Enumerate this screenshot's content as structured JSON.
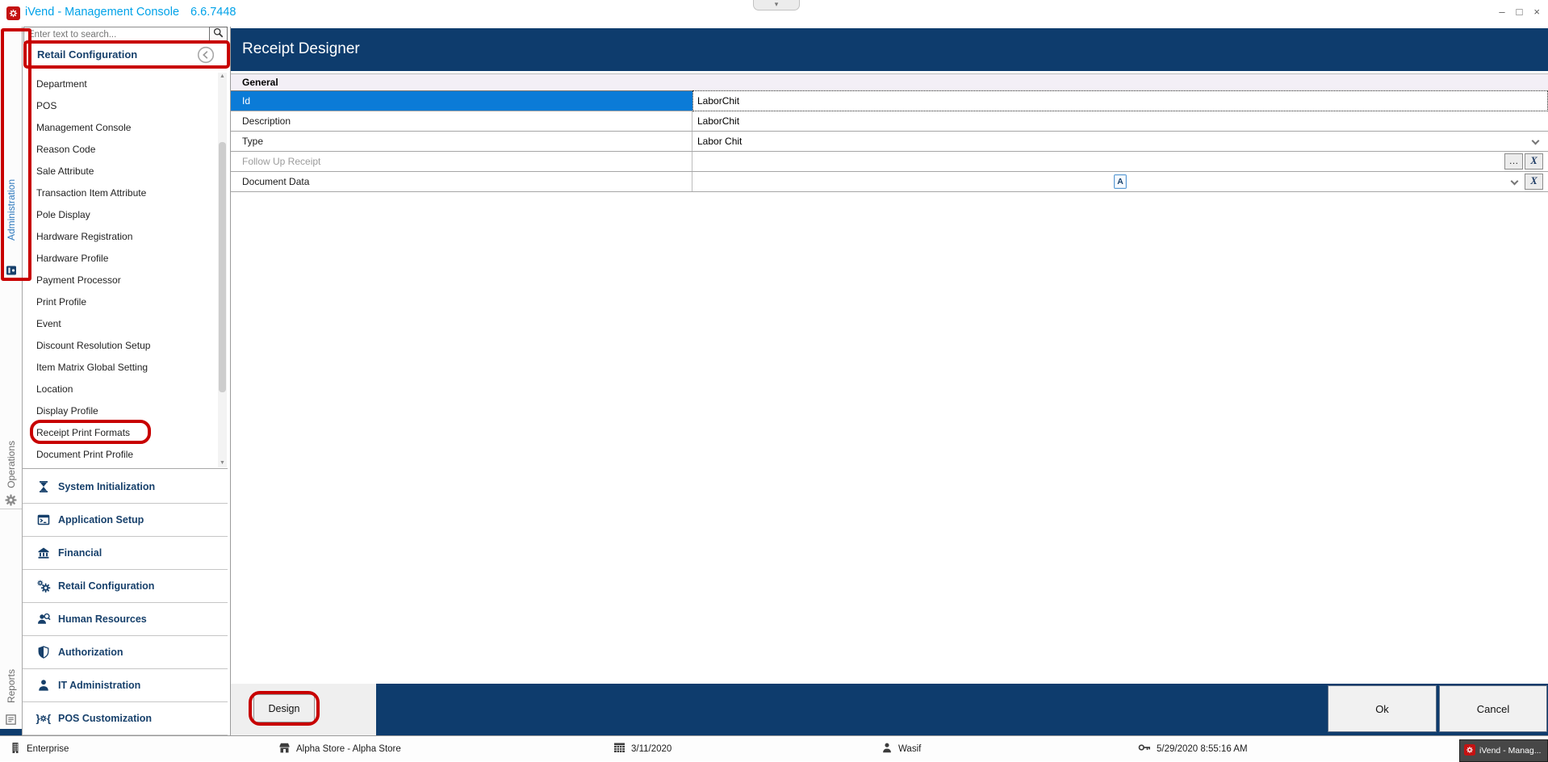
{
  "window": {
    "title": "iVend - Management Console",
    "version": "6.6.7448",
    "minimize": "–",
    "restore": "□",
    "close": "×",
    "ribbon_collapse": "▾"
  },
  "tabstrip": {
    "items": [
      {
        "label": "Administration",
        "active": true
      },
      {
        "label": "Operations",
        "active": false
      },
      {
        "label": "Reports",
        "active": false
      }
    ]
  },
  "sidebar": {
    "search_placeholder": "Enter text to search...",
    "header": "Retail Configuration",
    "items": [
      "Department",
      "POS",
      "Management Console",
      "Reason Code",
      "Sale Attribute",
      "Transaction Item Attribute",
      "Pole Display",
      "Hardware Registration",
      "Hardware Profile",
      "Payment Processor",
      "Print Profile",
      "Event",
      "Discount Resolution Setup",
      "Item Matrix Global Setting",
      "Location",
      "Display Profile",
      "Receipt Print Formats",
      "Document Print Profile"
    ],
    "annotated_item": "Receipt Print Formats",
    "sections": [
      {
        "label": "System Initialization",
        "icon": "hourglass-icon"
      },
      {
        "label": "Application Setup",
        "icon": "terminal-icon"
      },
      {
        "label": "Financial",
        "icon": "bank-icon"
      },
      {
        "label": "Retail Configuration",
        "icon": "gears-icon"
      },
      {
        "label": "Human Resources",
        "icon": "hr-search-icon"
      },
      {
        "label": "Authorization",
        "icon": "shield-icon"
      },
      {
        "label": "IT Administration",
        "icon": "person-icon"
      },
      {
        "label": "POS Customization",
        "icon": "pos-custom-icon"
      }
    ]
  },
  "main": {
    "title": "Receipt Designer",
    "group_header": "General",
    "fields": [
      {
        "label": "Id",
        "value": "LaborChit",
        "editor": "text-selected"
      },
      {
        "label": "Description",
        "value": "LaborChit",
        "editor": "text"
      },
      {
        "label": "Type",
        "value": "Labor Chit",
        "editor": "combo"
      },
      {
        "label": "Follow Up Receipt",
        "value": "",
        "editor": "ellipsis",
        "disabled": true,
        "ellipsis_label": "…",
        "clear_label": "X"
      },
      {
        "label": "Document Data",
        "value": "",
        "editor": "doc",
        "doc_letter": "A",
        "clear_label": "X"
      }
    ],
    "buttons": {
      "design": "Design",
      "ok": "Ok",
      "cancel": "Cancel"
    }
  },
  "statusbar": {
    "enterprise": "Enterprise",
    "store": "Alpha Store - Alpha Store",
    "business_date": "3/11/2020",
    "user": "Wasif",
    "login_time": "5/29/2020 8:55:16 AM",
    "taskbar_app": "iVend - Manag..."
  },
  "colors": {
    "navy": "#0e3c6d",
    "selection": "#0b7bd7",
    "title_accent": "#00a2e8",
    "annotation": "#c80000",
    "section_text": "#17406b"
  }
}
